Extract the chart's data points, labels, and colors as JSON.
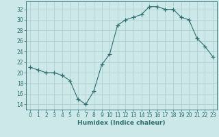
{
  "x": [
    0,
    1,
    2,
    3,
    4,
    5,
    6,
    7,
    8,
    9,
    10,
    11,
    12,
    13,
    14,
    15,
    16,
    17,
    18,
    19,
    20,
    21,
    22,
    23
  ],
  "y": [
    21,
    20.5,
    20,
    20,
    19.5,
    18.5,
    15,
    14,
    16.5,
    21.5,
    23.5,
    29,
    30,
    30.5,
    31,
    32.5,
    32.5,
    32,
    32,
    30.5,
    30,
    26.5,
    25,
    23
  ],
  "line_color": "#2d6e6e",
  "marker": "+",
  "marker_size": 4,
  "bg_color": "#cce8e8",
  "grid_color": "#b0d0d0",
  "xlabel": "Humidex (Indice chaleur)",
  "ylabel": "",
  "xlim": [
    -0.5,
    23.5
  ],
  "ylim": [
    13,
    33.5
  ],
  "yticks": [
    14,
    16,
    18,
    20,
    22,
    24,
    26,
    28,
    30,
    32
  ],
  "xticks": [
    0,
    1,
    2,
    3,
    4,
    5,
    6,
    7,
    8,
    9,
    10,
    11,
    12,
    13,
    14,
    15,
    16,
    17,
    18,
    19,
    20,
    21,
    22,
    23
  ],
  "font_color": "#2d6e6e",
  "label_fontsize": 6.5,
  "tick_fontsize": 5.5
}
